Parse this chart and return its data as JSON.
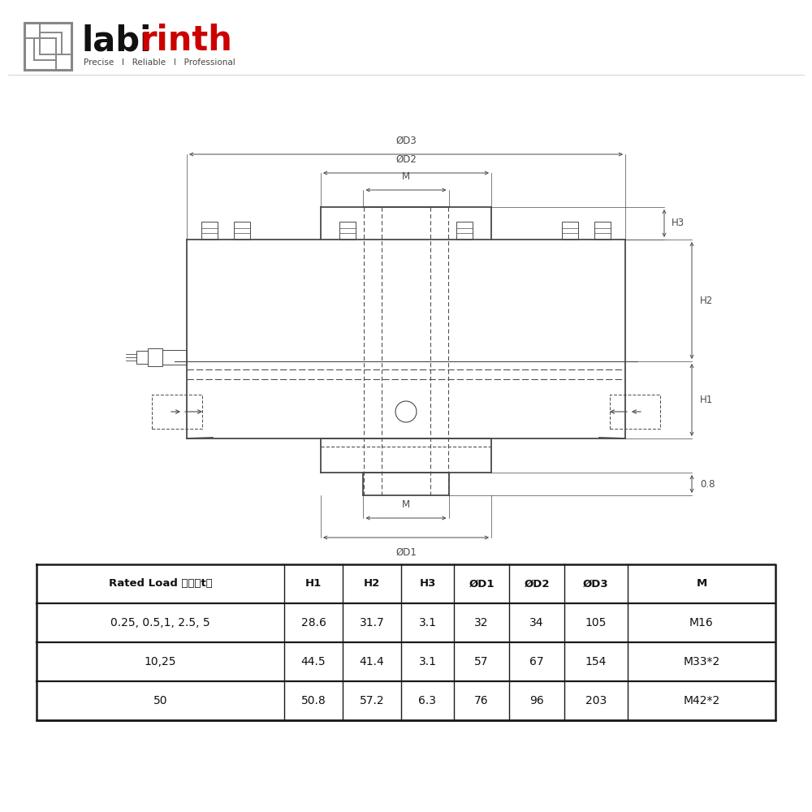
{
  "bg_color": "#ffffff",
  "line_color": "#4a4a4a",
  "dim_color": "#4a4a4a",
  "logo_text_labi": "labi",
  "logo_text_rinth": "rinth",
  "logo_subtitle": "Precise   I   Reliable   I   Professional",
  "table_headers": [
    "Rated Load 载荷（t）",
    "H1",
    "H2",
    "H3",
    "ØD1",
    "ØD2",
    "ØD3",
    "M"
  ],
  "table_rows": [
    [
      "0.25, 0.5,1, 2.5, 5",
      "28.6",
      "31.7",
      "3.1",
      "32",
      "34",
      "105",
      "M16"
    ],
    [
      "10,25",
      "44.5",
      "41.4",
      "3.1",
      "57",
      "67",
      "154",
      "M33*2"
    ],
    [
      "50",
      "50.8",
      "57.2",
      "6.3",
      "76",
      "96",
      "203",
      "M42*2"
    ]
  ],
  "dim_labels": {
    "D3": "ØD3",
    "D2": "ØD2",
    "D1": "ØD1",
    "M_top": "M",
    "M_bot": "M",
    "H1": "H1",
    "H2": "H2",
    "H3": "H3",
    "val_08": "0.8"
  }
}
